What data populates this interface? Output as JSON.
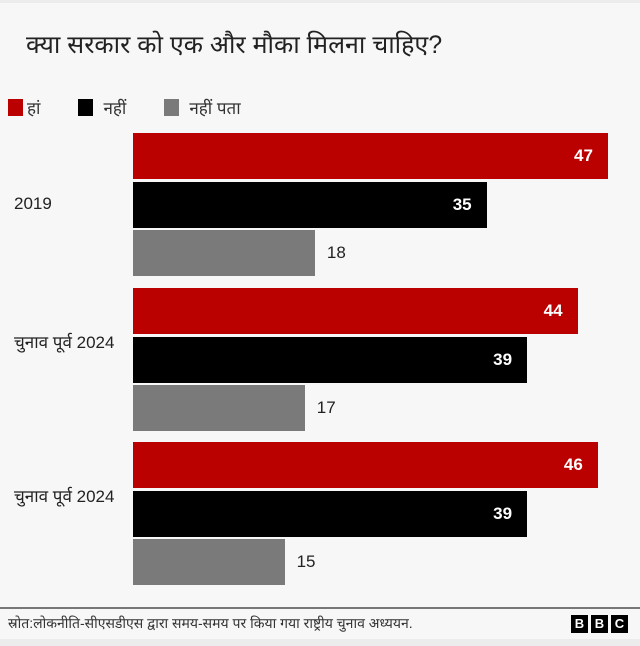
{
  "chart_data": {
    "type": "bar",
    "orientation": "horizontal",
    "title": "क्या सरकार को एक और मौका मिलना चाहिए?",
    "categories": [
      "2019",
      "चुनाव पूर्व 2024",
      "चुनाव पूर्व 2024"
    ],
    "series": [
      {
        "name": "हां",
        "color": "#bb0000",
        "values": [
          47,
          44,
          46
        ]
      },
      {
        "name": "नहीं",
        "color": "#000000",
        "values": [
          35,
          39,
          39
        ]
      },
      {
        "name": "नहीं पता",
        "color": "#7a7a7a",
        "values": [
          18,
          17,
          15
        ]
      }
    ],
    "xlim": [
      0,
      47
    ],
    "grid": false,
    "legend_position": "top-left",
    "data_labels": true
  },
  "footer": {
    "source": "स्रोत:लोकनीति-सीएसडीएस द्वारा समय-समय पर किया गया राष्ट्रीय चुनाव अध्ययन.",
    "logo": [
      "B",
      "B",
      "C"
    ]
  }
}
